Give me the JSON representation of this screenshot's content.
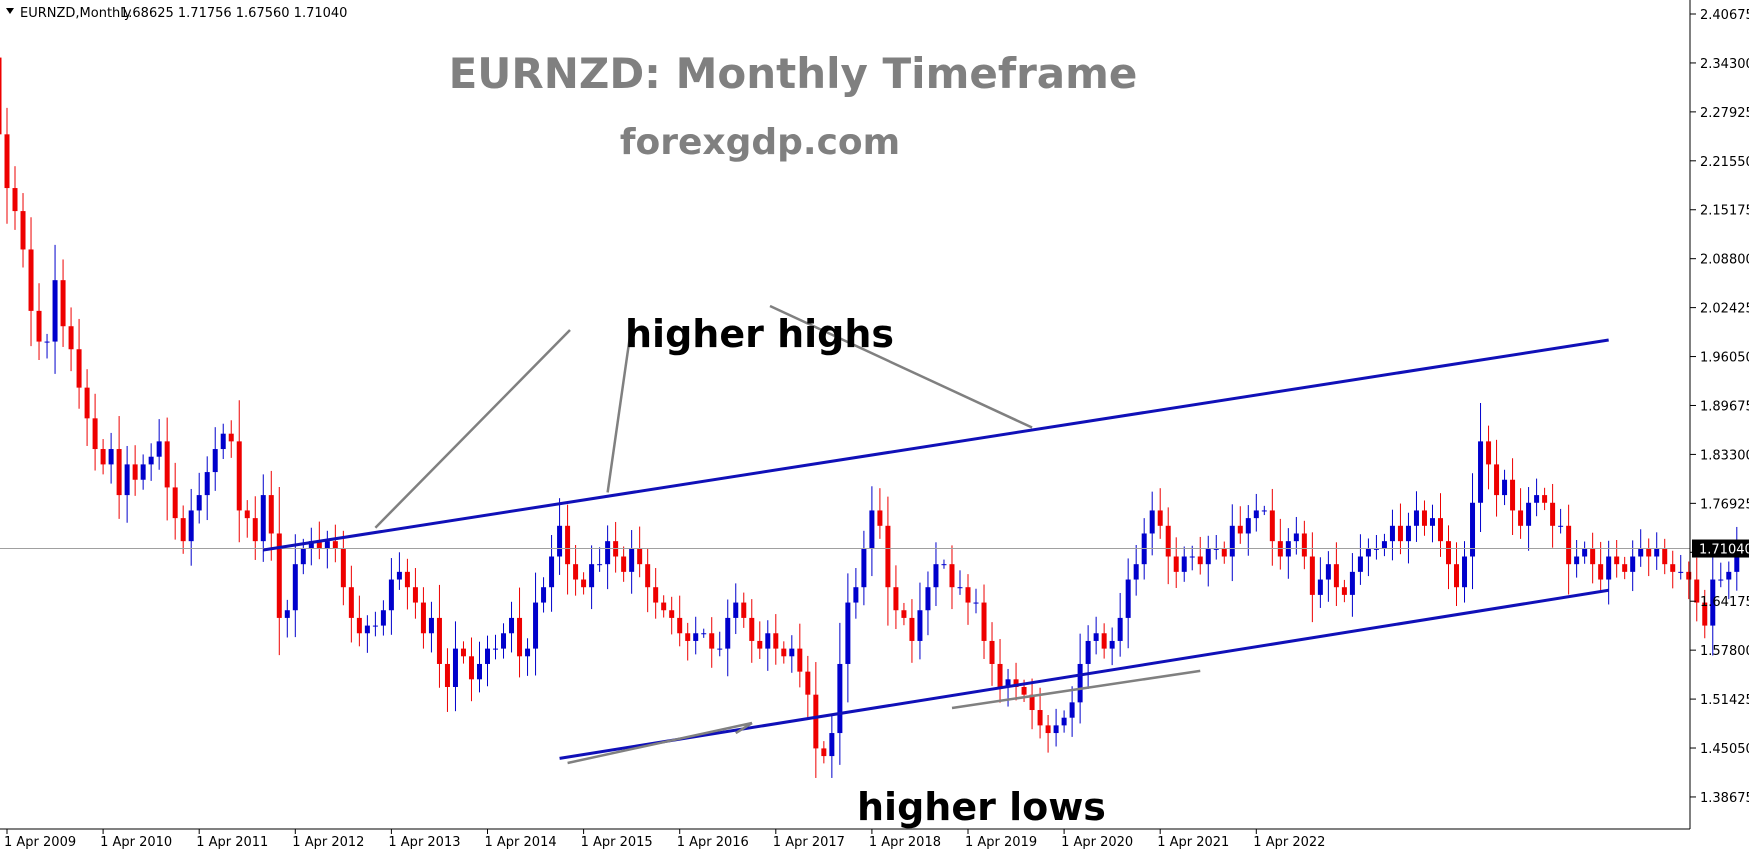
{
  "header": {
    "symbol_label": "EURNZD,Monthly",
    "ohlc": "1.68625 1.71756 1.67560 1.71040"
  },
  "current_price_label": "1.71040",
  "colors": {
    "bull": "#0000cc",
    "bear": "#ee0000",
    "trendline": "#1010b8",
    "pointer": "#808080",
    "axis": "#000000"
  },
  "chart_data": {
    "type": "candlestick",
    "title": "EURNZD: Monthly Timeframe",
    "subtitle": "forexgdp.com",
    "ylim": [
      1.345,
      2.425
    ],
    "y_ticks": [
      "2.40675",
      "2.34300",
      "2.27925",
      "2.21550",
      "2.15175",
      "2.08800",
      "2.02425",
      "1.96050",
      "1.89675",
      "1.83300",
      "1.76925",
      "1.70550",
      "1.64175",
      "1.57800",
      "1.51425",
      "1.45050",
      "1.38675"
    ],
    "x_tick_labels": [
      "1 Apr 2009",
      "1 Apr 2010",
      "1 Apr 2011",
      "1 Apr 2012",
      "1 Apr 2013",
      "1 Apr 2014",
      "1 Apr 2015",
      "1 Apr 2016",
      "1 Apr 2017",
      "1 Apr 2018",
      "1 Apr 2019",
      "1 Apr 2020",
      "1 Apr 2021",
      "1 Apr 2022"
    ],
    "first_candle": "2009-01",
    "current_price": 1.7104,
    "close_series": [
      2.38,
      2.35,
      2.25,
      2.18,
      2.15,
      2.1,
      2.02,
      1.98,
      1.98,
      2.06,
      2.0,
      1.97,
      1.92,
      1.88,
      1.84,
      1.82,
      1.84,
      1.78,
      1.82,
      1.8,
      1.82,
      1.83,
      1.85,
      1.79,
      1.75,
      1.72,
      1.76,
      1.78,
      1.81,
      1.84,
      1.86,
      1.85,
      1.76,
      1.75,
      1.72,
      1.78,
      1.73,
      1.62,
      1.63,
      1.69,
      1.71,
      1.72,
      1.71,
      1.72,
      1.71,
      1.66,
      1.62,
      1.6,
      1.61,
      1.61,
      1.63,
      1.67,
      1.68,
      1.66,
      1.64,
      1.6,
      1.62,
      1.56,
      1.53,
      1.58,
      1.57,
      1.54,
      1.56,
      1.58,
      1.58,
      1.6,
      1.62,
      1.57,
      1.58,
      1.64,
      1.66,
      1.7,
      1.74,
      1.69,
      1.67,
      1.66,
      1.69,
      1.69,
      1.72,
      1.7,
      1.68,
      1.71,
      1.69,
      1.66,
      1.64,
      1.63,
      1.62,
      1.6,
      1.59,
      1.6,
      1.6,
      1.58,
      1.58,
      1.62,
      1.64,
      1.62,
      1.59,
      1.58,
      1.6,
      1.58,
      1.57,
      1.58,
      1.55,
      1.52,
      1.45,
      1.44,
      1.47,
      1.56,
      1.64,
      1.66,
      1.71,
      1.76,
      1.74,
      1.66,
      1.63,
      1.62,
      1.59,
      1.63,
      1.66,
      1.69,
      1.69,
      1.66,
      1.66,
      1.64,
      1.64,
      1.59,
      1.56,
      1.53,
      1.54,
      1.53,
      1.52,
      1.5,
      1.48,
      1.47,
      1.48,
      1.49,
      1.51,
      1.56,
      1.59,
      1.6,
      1.58,
      1.59,
      1.62,
      1.67,
      1.69,
      1.73,
      1.76,
      1.74,
      1.7,
      1.68,
      1.7,
      1.7,
      1.69,
      1.71,
      1.71,
      1.7,
      1.74,
      1.73,
      1.75,
      1.76,
      1.76,
      1.72,
      1.7,
      1.72,
      1.73,
      1.7,
      1.65,
      1.67,
      1.69,
      1.66,
      1.65,
      1.68,
      1.7,
      1.71,
      1.71,
      1.72,
      1.74,
      1.72,
      1.74,
      1.76,
      1.74,
      1.75,
      1.72,
      1.69,
      1.66,
      1.7,
      1.77,
      1.85,
      1.82,
      1.78,
      1.8,
      1.76,
      1.74,
      1.77,
      1.78,
      1.77,
      1.74,
      1.74,
      1.69,
      1.7,
      1.71,
      1.69,
      1.67,
      1.7,
      1.69,
      1.68,
      1.7,
      1.71,
      1.7,
      1.71,
      1.69,
      1.68,
      1.68,
      1.67,
      1.64,
      1.61,
      1.67,
      1.67,
      1.68,
      1.71,
      1.71,
      1.68,
      1.6,
      1.61,
      1.65,
      1.67,
      1.69,
      1.68,
      1.65,
      1.7,
      1.75,
      1.72,
      1.66,
      1.68,
      1.68,
      1.71
    ],
    "trendlines": [
      {
        "name": "upper",
        "from": [
          "2011-12",
          1.7085
        ],
        "to": [
          "2025-12",
          1.982
        ]
      },
      {
        "name": "lower",
        "from": [
          "2015-01",
          1.437
        ],
        "to": [
          "2025-12",
          1.656
        ]
      }
    ],
    "annotations": [
      {
        "text": "higher highs",
        "pointers": [
          [
            "2013-02",
            1.7375
          ],
          [
            "2015-07",
            1.7835
          ],
          [
            "2019-12",
            1.868
          ]
        ]
      },
      {
        "text": "higher lows",
        "pointers": [
          [
            "2015-02",
            1.431
          ],
          [
            "2016-11",
            1.47
          ],
          [
            "2021-09",
            1.551
          ]
        ]
      }
    ]
  }
}
